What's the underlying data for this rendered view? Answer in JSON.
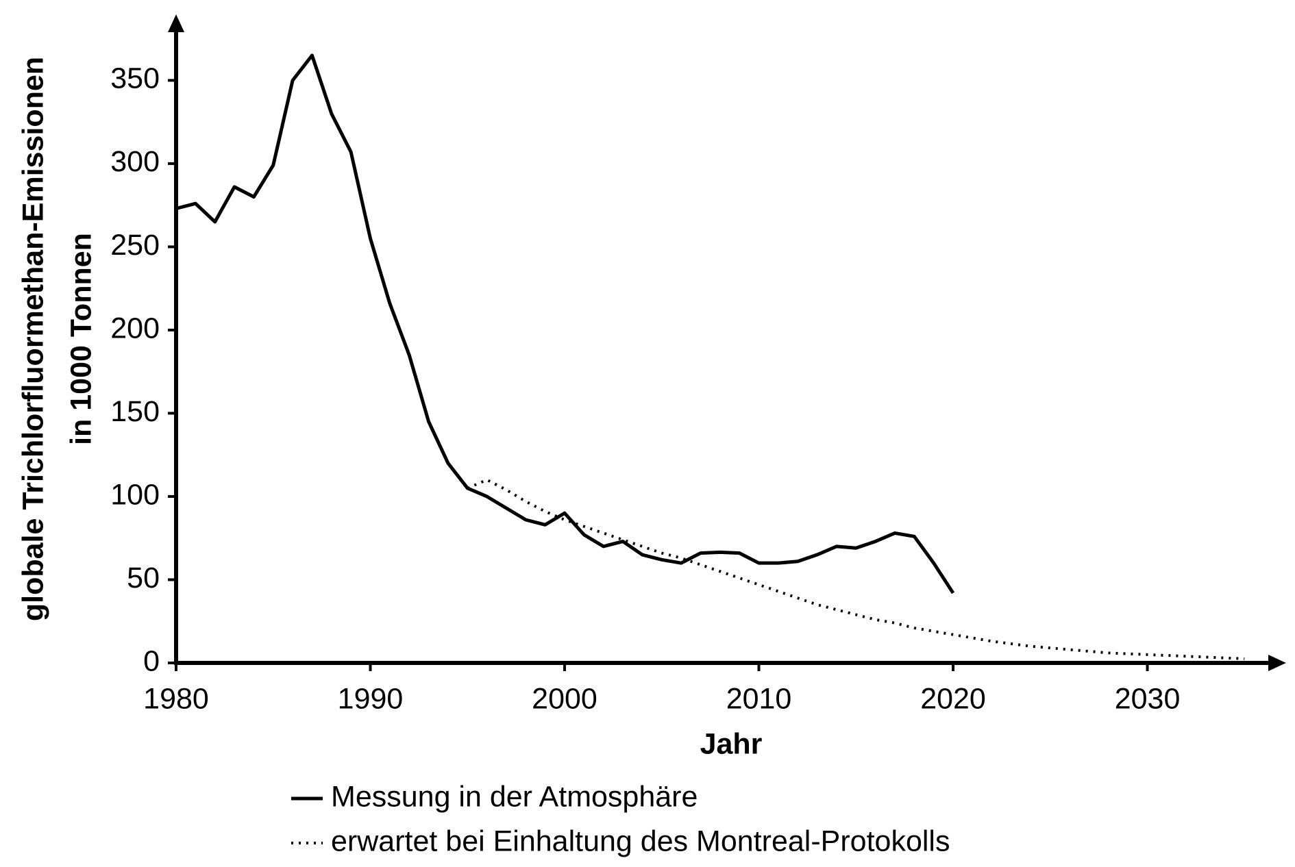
{
  "chart_data": {
    "type": "line",
    "ylabel": [
      "globale Trichlorfluormethan-Emissionen",
      "in 1000 Tonnen"
    ],
    "xlabel": "Jahr",
    "x": [
      1980,
      1981,
      1982,
      1983,
      1984,
      1985,
      1986,
      1987,
      1988,
      1989,
      1990,
      1991,
      1992,
      1993,
      1994,
      1995,
      1996,
      1997,
      1998,
      1999,
      2000,
      2001,
      2002,
      2003,
      2004,
      2005,
      2006,
      2007,
      2008,
      2009,
      2010,
      2011,
      2012,
      2013,
      2014,
      2015,
      2016,
      2017,
      2018,
      2019,
      2020,
      2021,
      2022,
      2023,
      2024,
      2025,
      2026,
      2027,
      2028,
      2029,
      2030,
      2031,
      2032,
      2033,
      2034,
      2035
    ],
    "series": [
      {
        "name": "Messung in der Atmosphäre",
        "color": "#000000",
        "style": "solid",
        "values": [
          273,
          276,
          265,
          286,
          280,
          299,
          350,
          365,
          330,
          307,
          255,
          216,
          185,
          145,
          120,
          105,
          100,
          93,
          86,
          83,
          90,
          77,
          70,
          73,
          65,
          62,
          60,
          66,
          66.5,
          66,
          60,
          60,
          61,
          65,
          70,
          69,
          73,
          78,
          76,
          60,
          42,
          null,
          null,
          null,
          null,
          null,
          null,
          null,
          null,
          null,
          null,
          null,
          null,
          null,
          null,
          null
        ]
      },
      {
        "name": "erwartet bei Einhaltung des Montreal-Protokolls",
        "color": "#000000",
        "style": "dotted",
        "values": [
          null,
          null,
          null,
          null,
          null,
          null,
          null,
          null,
          null,
          null,
          null,
          null,
          null,
          null,
          null,
          105,
          110,
          104,
          97,
          91,
          86,
          82,
          78,
          74,
          70,
          66,
          63,
          59,
          55,
          51,
          47,
          43,
          39,
          35,
          32,
          29,
          26,
          24,
          21,
          19,
          17,
          15,
          13,
          11.5,
          10,
          9,
          8,
          7,
          6,
          5.5,
          5,
          4.5,
          4,
          3.5,
          3,
          2.5
        ]
      }
    ],
    "xlim": [
      1980,
      2037
    ],
    "ylim": [
      0,
      388
    ],
    "xticks": [
      1980,
      1990,
      2000,
      2010,
      2020,
      2030
    ],
    "yticks": [
      0,
      50,
      100,
      150,
      200,
      250,
      300,
      350
    ],
    "legend": "bottom"
  }
}
